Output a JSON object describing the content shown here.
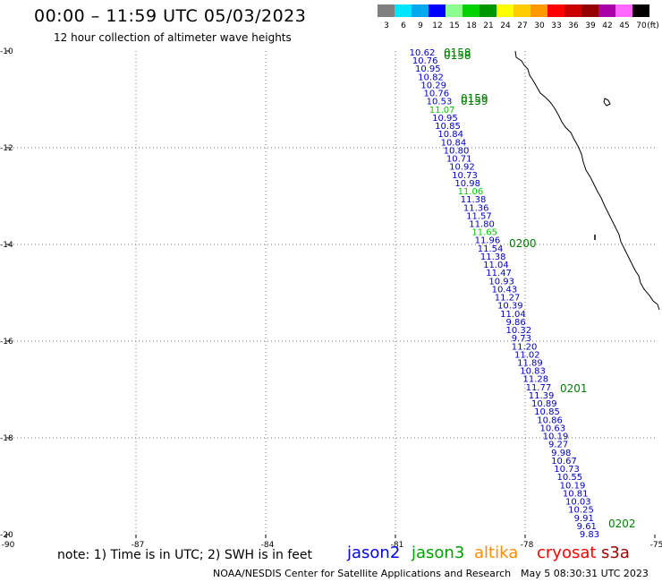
{
  "header": {
    "title": "00:00 – 11:59 UTC 05/03/2023",
    "subtitle": "12 hour collection of altimeter wave heights"
  },
  "legend": {
    "colors": [
      "#808080",
      "#00e5ff",
      "#00a8f0",
      "#0000ff",
      "#8cff8c",
      "#00d200",
      "#009600",
      "#ffff00",
      "#ffcc00",
      "#ff9900",
      "#ff0000",
      "#c80000",
      "#960000",
      "#aa00aa",
      "#ff66ff",
      "#000000"
    ],
    "labels": [
      "3",
      "6",
      "9",
      "12",
      "15",
      "18",
      "21",
      "24",
      "27",
      "30",
      "33",
      "36",
      "39",
      "42",
      "45",
      "70"
    ],
    "unit": "(ft)"
  },
  "axes": {
    "lon_ticks": [
      "-90",
      "-87",
      "-84",
      "-81",
      "-78",
      "-75"
    ],
    "lat_ticks": [
      "-10",
      "-12",
      "-14",
      "-16",
      "-18",
      "-20"
    ]
  },
  "track": {
    "labels": [
      "10.62",
      "10.76",
      "10.95",
      "10.82",
      "10.29",
      "10.76",
      "10.53",
      "11.07",
      "10.95",
      "10.85",
      "10.84",
      "10.84",
      "10.80",
      "10.71",
      "10.92",
      "10.73",
      "10.98",
      "11.06",
      "11.38",
      "11.36",
      "11.57",
      "11.80",
      "11.65",
      "11.96",
      "11.54",
      "11.38",
      "11.04",
      "11.47",
      "10.93",
      "10.43",
      "11.27",
      "10.39",
      "11.04",
      "9.86",
      "10.32",
      "9.73",
      "11.20",
      "11.02",
      "11.89",
      "10.83",
      "11.28",
      "11.77",
      "11.39",
      "10.89",
      "10.85",
      "10.86",
      "10.63",
      "10.19",
      "9.27",
      "9.98",
      "10.67",
      "10.73",
      "10.55",
      "10.19",
      "10.81",
      "10.03",
      "10.25",
      "9.91",
      "9.61",
      "9.83"
    ],
    "colors": [
      "#0000c8",
      "#0000c8",
      "#0000c8",
      "#0000c8",
      "#0000c8",
      "#0000c8",
      "#0000c8",
      "#00c800",
      "#0000c8",
      "#0000c8",
      "#0000c8",
      "#0000c8",
      "#0000c8",
      "#0000c8",
      "#0000c8",
      "#0000c8",
      "#0000c8",
      "#00c800",
      "#0000c8",
      "#0000c8",
      "#0000c8",
      "#0000c8",
      "#00c800",
      "#0000c8",
      "#0000c8",
      "#0000c8",
      "#0000c8",
      "#0000c8",
      "#0000c8",
      "#0000c8",
      "#0000c8",
      "#0000c8",
      "#0000c8",
      "#0000c8",
      "#0000c8",
      "#0000c8",
      "#0000c8",
      "#0000c8",
      "#0000c8",
      "#0000c8",
      "#0000c8",
      "#0000c8",
      "#0000c8",
      "#0000c8",
      "#0000c8",
      "#0000c8",
      "#0000c8",
      "#0000c8",
      "#0000c8",
      "#0000c8",
      "#0000c8",
      "#0000c8",
      "#0000c8",
      "#0000c8",
      "#0000c8",
      "#0000c8",
      "#0000c8",
      "#0000c8",
      "#0000c8",
      "#0000c8"
    ],
    "times": [
      "0158",
      "0158",
      "0159",
      "0159",
      "0200",
      "0201",
      "0202"
    ]
  },
  "note": "note:  1) Time is in UTC;  2) SWH is in feet",
  "satellites": [
    {
      "name": "jason2",
      "color": "#0000ff"
    },
    {
      "name": "jason3",
      "color": "#00a000"
    },
    {
      "name": "altika",
      "color": "#ff8c00"
    },
    {
      "name": "cryosat",
      "color": "#ff0000"
    },
    {
      "name": "s3a",
      "color": "#a00000"
    }
  ],
  "credit": "NOAA/NESDIS Center for Satellite Applications and Research",
  "credit_time": "May  5 08:30:31 UTC 2023"
}
